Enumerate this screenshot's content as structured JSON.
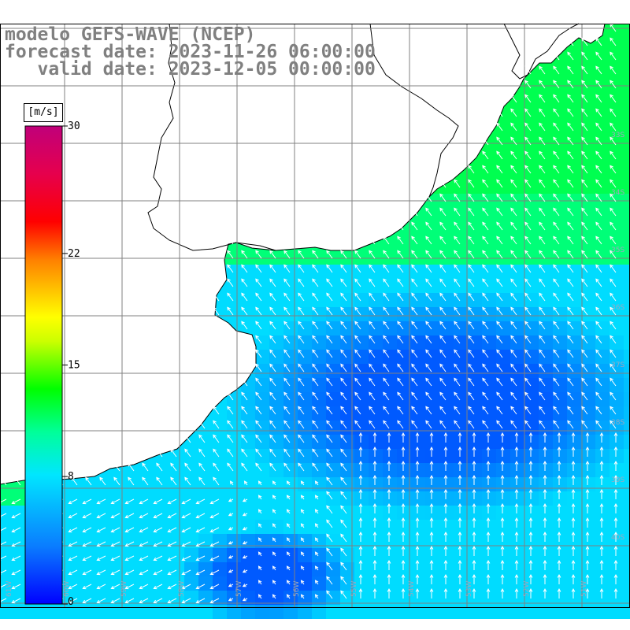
{
  "header": {
    "line1": "modelo GEFS-WAVE (NCEP)",
    "line2": "forecast date: 2023-11-26 06:00:00",
    "line3": "   valid date: 2023-12-05 00:00:00"
  },
  "colorbar": {
    "unit": "[m/s]",
    "ticks": [
      "30",
      "22",
      "15",
      "8",
      "0"
    ],
    "colors": [
      "#0000ff",
      "#0a7cff",
      "#00e6ff",
      "#00ff66",
      "#33ff00",
      "#ccff00",
      "#ffff00",
      "#ff8000",
      "#ff0000",
      "#e6004d",
      "#c0007a"
    ]
  },
  "map": {
    "longitude_labels": [
      "61W",
      "60W",
      "59W",
      "58W",
      "57W",
      "56W",
      "55W",
      "54W",
      "53W",
      "52W",
      "51W"
    ],
    "latitude_labels": [
      "33S",
      "34S",
      "35S",
      "36S",
      "37S",
      "38S",
      "39S",
      "40S"
    ],
    "land_color": "#ffffff",
    "coast_color": "#000000",
    "grid_color": "#808080",
    "arrow_color": "#ffffff"
  }
}
